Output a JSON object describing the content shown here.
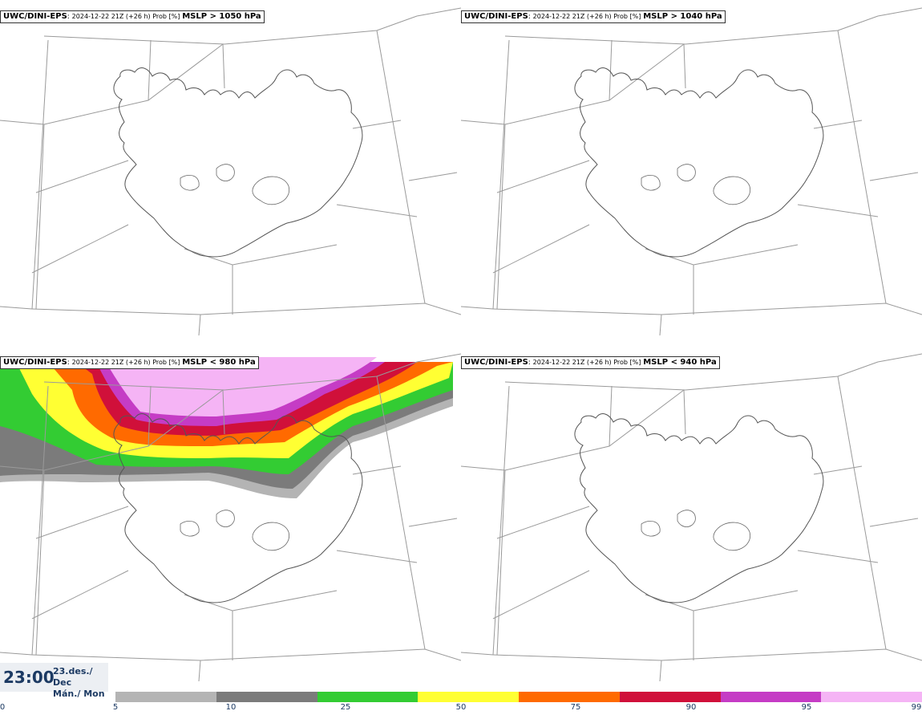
{
  "panels": [
    {
      "model": "UWC/DINI-EPS",
      "meta": "2024-12-22 21Z (+26 h) Prob [%]",
      "variable": "MSLP > 1050 hPa"
    },
    {
      "model": "UWC/DINI-EPS",
      "meta": "2024-12-22 21Z (+26 h) Prob [%]",
      "variable": "MSLP > 1040 hPa"
    },
    {
      "model": "UWC/DINI-EPS",
      "meta": "2024-12-22 21Z (+26 h) Prob [%]",
      "variable": "MSLP < 980 hPa"
    },
    {
      "model": "UWC/DINI-EPS",
      "meta": "2024-12-22 21Z (+26 h) Prob [%]",
      "variable": "MSLP < 940 hPa"
    }
  ],
  "valid_time": {
    "time": "23:00",
    "date_line1": "23.des./ Dec",
    "date_line2": "Mán./ Mon"
  },
  "legend": {
    "ticks": [
      "0",
      "5",
      "10",
      "25",
      "50",
      "75",
      "90",
      "95",
      "99"
    ],
    "colors": [
      "#b4b4b4",
      "#7b7b7b",
      "#33cc33",
      "#ffff33",
      "#ff6a00",
      "#d0103a",
      "#c53cc5",
      "#f5b4f5"
    ]
  }
}
